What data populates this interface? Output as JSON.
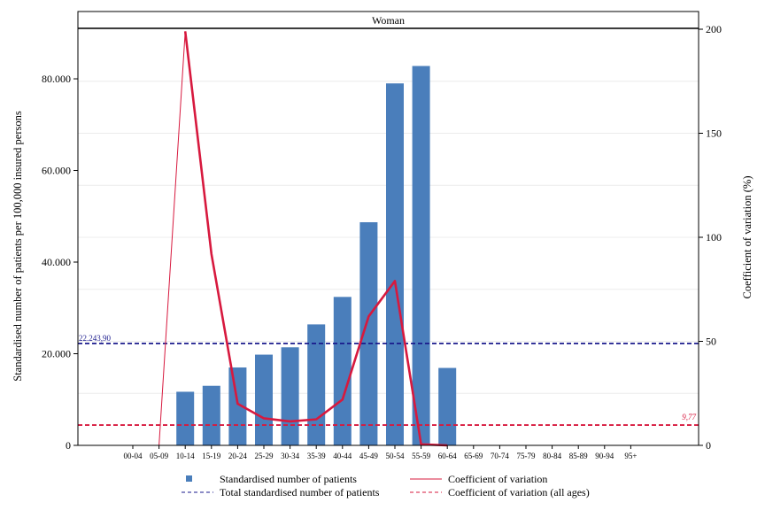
{
  "chart_data": {
    "type": "bar",
    "panel_title": "Woman",
    "categories": [
      "00-04",
      "05-09",
      "10-14",
      "15-19",
      "20-24",
      "25-29",
      "30-34",
      "35-39",
      "40-44",
      "45-49",
      "50-54",
      "55-59",
      "60-64",
      "65-69",
      "70-74",
      "75-79",
      "80-84",
      "85-89",
      "90-94",
      "95+"
    ],
    "series": [
      {
        "name": "Standardised number of patients",
        "kind": "bar",
        "axis": "left",
        "color": "#4a7ebb",
        "values": [
          0,
          0,
          11700,
          13000,
          17000,
          19800,
          21400,
          26400,
          32400,
          48700,
          79000,
          82800,
          16900,
          0,
          0,
          0,
          0,
          0,
          0,
          0
        ]
      },
      {
        "name": "Coefficient of variation",
        "kind": "line",
        "axis": "right",
        "color": "#d7193e",
        "values": [
          0,
          0,
          199,
          92,
          20,
          13,
          11.5,
          12.5,
          22,
          62,
          79,
          0.5,
          0,
          null,
          null,
          null,
          null,
          null,
          null,
          null
        ]
      }
    ],
    "reference_lines": [
      {
        "name": "Total standardised number of patients",
        "axis": "left",
        "value": 22243.9,
        "label": "22.243,90",
        "color": "#1a1a8c"
      },
      {
        "name": "Coefficient of variation (all ages)",
        "axis": "right",
        "value": 9.77,
        "label": "9,77",
        "color": "#d7193e"
      }
    ],
    "ylabel": "Standardised number of patients per 100,000 insured persons",
    "y2label": "Coefficient of variation (%)",
    "ylim": [
      0,
      90826
    ],
    "y2lim": [
      0,
      200
    ],
    "yticks": [
      0,
      20000,
      40000,
      60000,
      80000
    ],
    "ytick_labels": [
      "0",
      "20.000",
      "40.000",
      "60.000",
      "80.000"
    ],
    "y2ticks": [
      0,
      50,
      100,
      150,
      200
    ],
    "y2tick_labels": [
      "0",
      "50",
      "100",
      "150",
      "200"
    ],
    "grid": true,
    "legend": {
      "position": "bottom",
      "items": [
        {
          "label": "Standardised number of patients",
          "symbol": "square",
          "color": "#4a7ebb"
        },
        {
          "label": "Coefficient of variation",
          "symbol": "line",
          "color": "#d7193e"
        },
        {
          "label": "Total standardised number of patients",
          "symbol": "dashed",
          "color": "#1a1a8c"
        },
        {
          "label": "Coefficient of variation (all ages)",
          "symbol": "dashed",
          "color": "#d7193e"
        }
      ]
    }
  }
}
